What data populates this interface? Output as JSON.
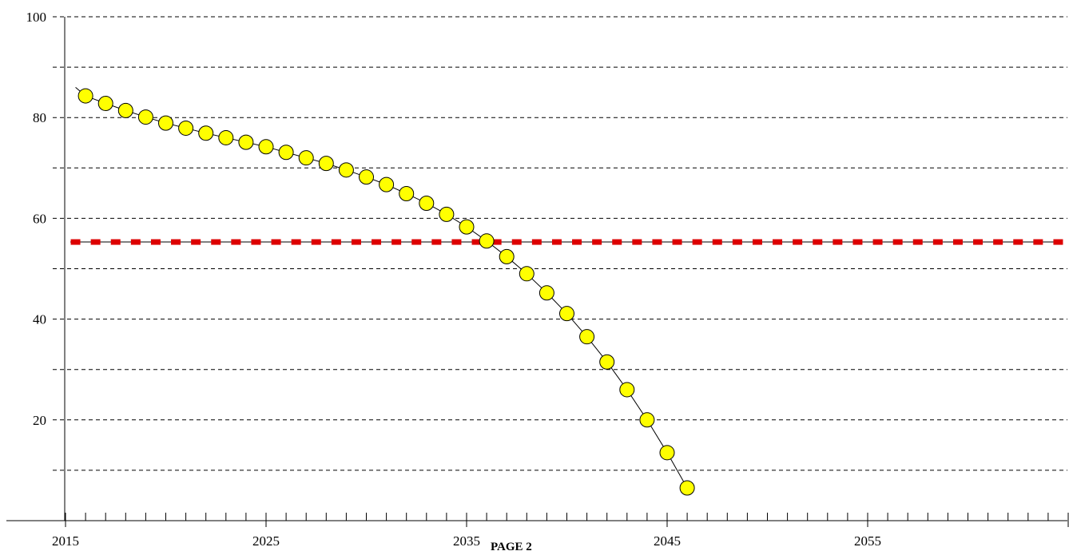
{
  "footer": {
    "page_label": "PAGE 2"
  },
  "chart_data": {
    "type": "line",
    "title": "",
    "xlabel": "",
    "ylabel": "",
    "xlim": [
      2015,
      2065
    ],
    "ylim": [
      0,
      100
    ],
    "x_tick_labels": [
      "2015",
      "2025",
      "2035",
      "2045",
      "2055"
    ],
    "x_tick_values": [
      2015,
      2025,
      2035,
      2045,
      2055
    ],
    "y_tick_labels": [
      "20",
      "40",
      "60",
      "80",
      "100"
    ],
    "y_tick_values": [
      20,
      40,
      60,
      80,
      100
    ],
    "y_gridlines": [
      10,
      20,
      30,
      40,
      50,
      60,
      70,
      80,
      90,
      100
    ],
    "grid": true,
    "grid_style": "dashed horizontal",
    "legend": "none",
    "colors": {
      "marker_fill": "#ffff00",
      "marker_stroke": "#000000",
      "threshold_marker": "#dd0000",
      "line": "#000000"
    },
    "series": [
      {
        "style": "line with circle markers",
        "trend_line_start": {
          "x": 2015.5,
          "y": 86
        },
        "x": [
          2016,
          2017,
          2018,
          2019,
          2020,
          2021,
          2022,
          2023,
          2024,
          2025,
          2026,
          2027,
          2028,
          2029,
          2030,
          2031,
          2032,
          2033,
          2034,
          2035,
          2036,
          2037,
          2038,
          2039,
          2040,
          2041,
          2042,
          2043,
          2044,
          2045,
          2046
        ],
        "values": [
          84.3,
          82.8,
          81.4,
          80.1,
          78.9,
          77.9,
          76.9,
          76.0,
          75.1,
          74.2,
          73.1,
          72.0,
          70.9,
          69.6,
          68.2,
          66.7,
          64.9,
          63.0,
          60.8,
          58.3,
          55.5,
          52.4,
          49.0,
          45.2,
          41.1,
          36.5,
          31.5,
          26.0,
          20.0,
          13.5,
          6.5
        ]
      },
      {
        "style": "horizontal threshold line with square markers",
        "x_start": 2015,
        "x_end": 2065,
        "value": 55.3,
        "marker_x": [
          2015.5,
          2016.5,
          2017.5,
          2018.5,
          2019.5,
          2020.5,
          2021.5,
          2022.5,
          2023.5,
          2024.5,
          2025.5,
          2026.5,
          2027.5,
          2028.5,
          2029.5,
          2030.5,
          2031.5,
          2032.5,
          2033.5,
          2034.5,
          2035.5,
          2036.5,
          2037.5,
          2038.5,
          2039.5,
          2040.5,
          2041.5,
          2042.5,
          2043.5,
          2044.5,
          2045.5,
          2046.5,
          2047.5,
          2048.5,
          2049.5,
          2050.5,
          2051.5,
          2052.5,
          2053.5,
          2054.5,
          2055.5,
          2056.5,
          2057.5,
          2058.5,
          2059.5,
          2060.5,
          2061.5,
          2062.5,
          2063.5,
          2064.5
        ]
      }
    ]
  }
}
